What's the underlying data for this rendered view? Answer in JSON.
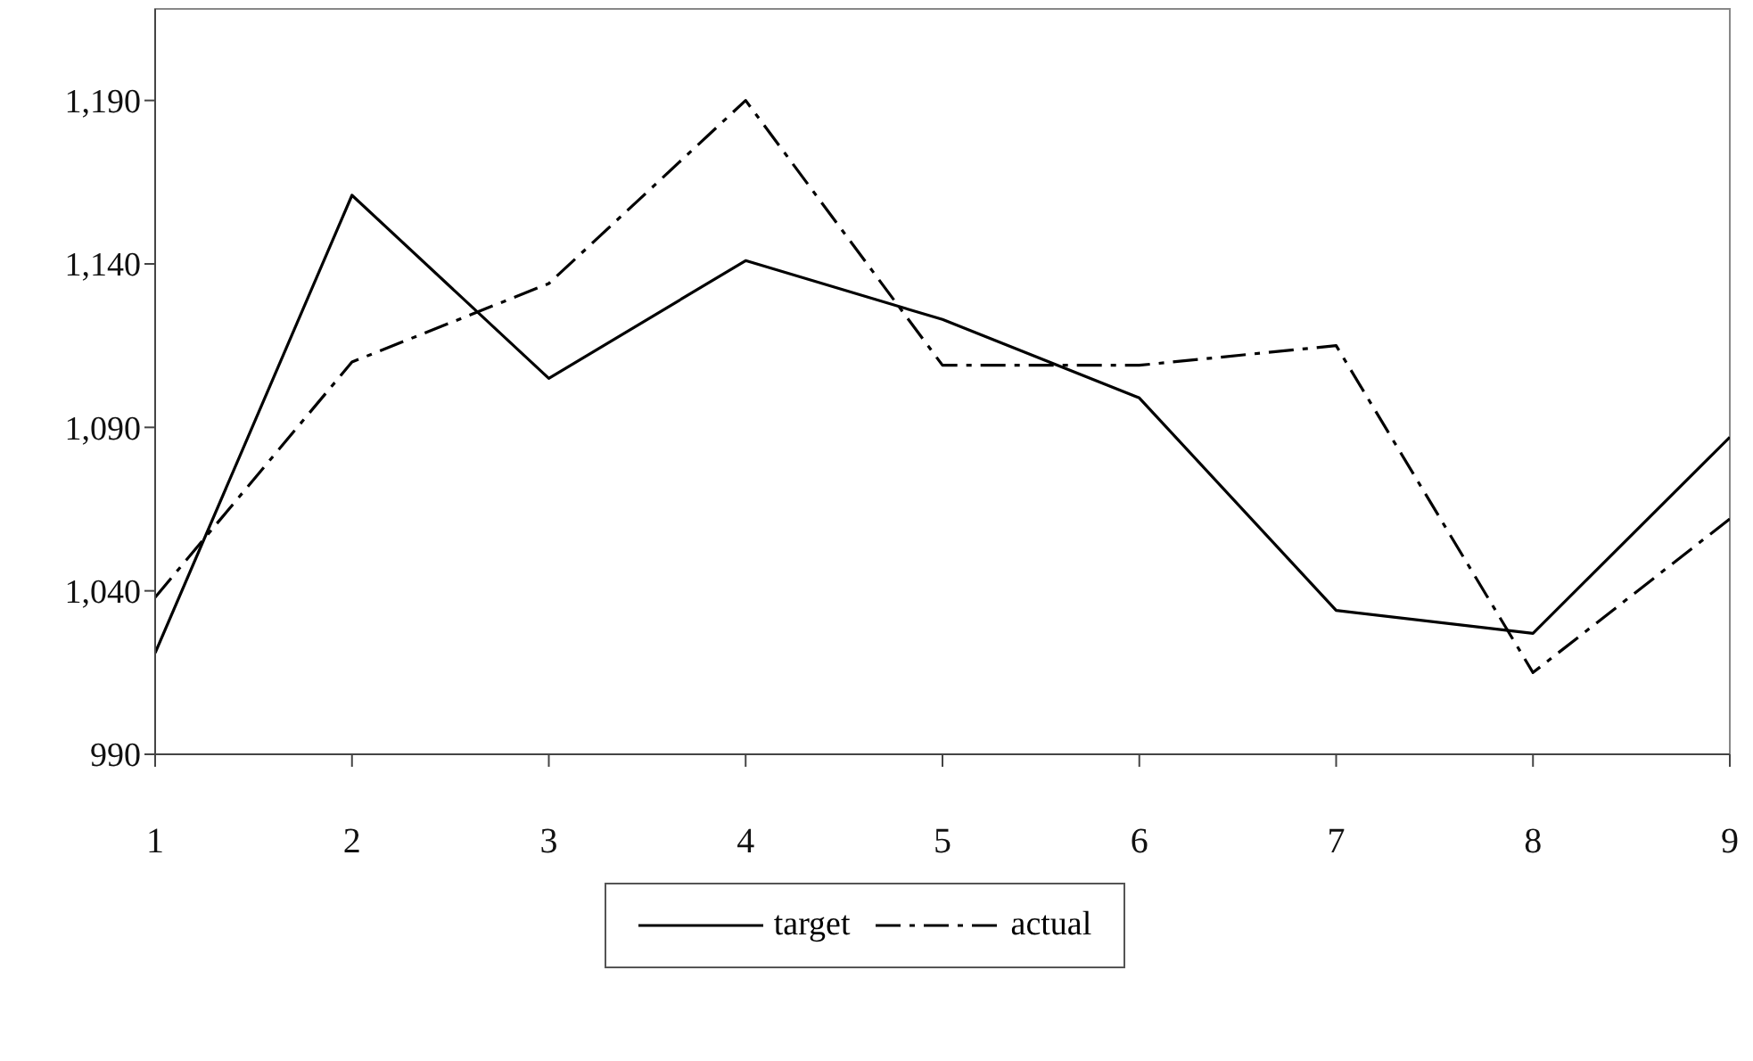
{
  "chart_data": {
    "type": "line",
    "x": [
      1,
      2,
      3,
      4,
      5,
      6,
      7,
      8,
      9
    ],
    "series": [
      {
        "name": "target",
        "color": "#000000",
        "line_style": "solid",
        "values": [
          1021,
          1161,
          1105,
          1141,
          1123,
          1099,
          1034,
          1027,
          1087
        ]
      },
      {
        "name": "actual",
        "color": "#000000",
        "line_style": "dashed",
        "values": [
          1038,
          1110,
          1134,
          1190,
          1109,
          1109,
          1115,
          1015,
          1062
        ]
      }
    ],
    "xlim": [
      1,
      9
    ],
    "xticks": [
      1,
      2,
      3,
      4,
      5,
      6,
      7,
      8,
      9
    ],
    "ylim": [
      990,
      1218
    ],
    "yticks": [
      990,
      {
        "value": 1040,
        "label": "1,040"
      },
      {
        "value": 1090,
        "label": "1,090"
      },
      {
        "value": 1140,
        "label": "1,140"
      },
      {
        "value": 1190,
        "label": "1,190"
      }
    ],
    "grid": false,
    "legend": "bottom",
    "marker": "none"
  }
}
